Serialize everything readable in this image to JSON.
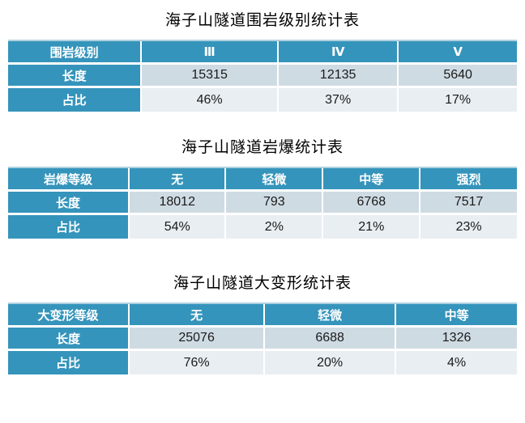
{
  "colors": {
    "header_bg": "#3594BB",
    "accent_light": "#AFD2E0",
    "band_dark": "#CFDBE3",
    "band_light": "#E8EEF2",
    "header_text": "#FFFFFF",
    "body_text": "#1A1A1A",
    "page_bg": "#FFFFFF"
  },
  "tables": [
    {
      "title": "海子山隧道围岩级别统计表",
      "columns": [
        "围岩级别",
        "Ⅲ",
        "Ⅳ",
        "Ⅴ"
      ],
      "rows": [
        {
          "label": "长度",
          "values": [
            "15315",
            "12135",
            "5640"
          ]
        },
        {
          "label": "占比",
          "values": [
            "46%",
            "37%",
            "17%"
          ]
        }
      ]
    },
    {
      "title": "海子山隧道岩爆统计表",
      "columns": [
        "岩爆等级",
        "无",
        "轻微",
        "中等",
        "强烈"
      ],
      "rows": [
        {
          "label": "长度",
          "values": [
            "18012",
            "793",
            "6768",
            "7517"
          ]
        },
        {
          "label": "占比",
          "values": [
            "54%",
            "2%",
            "21%",
            "23%"
          ]
        }
      ]
    },
    {
      "title": "海子山隧道大变形统计表",
      "columns": [
        "大变形等级",
        "无",
        "轻微",
        "中等"
      ],
      "rows": [
        {
          "label": "长度",
          "values": [
            "25076",
            "6688",
            "1326"
          ]
        },
        {
          "label": "占比",
          "values": [
            "76%",
            "20%",
            "4%"
          ]
        }
      ]
    }
  ]
}
